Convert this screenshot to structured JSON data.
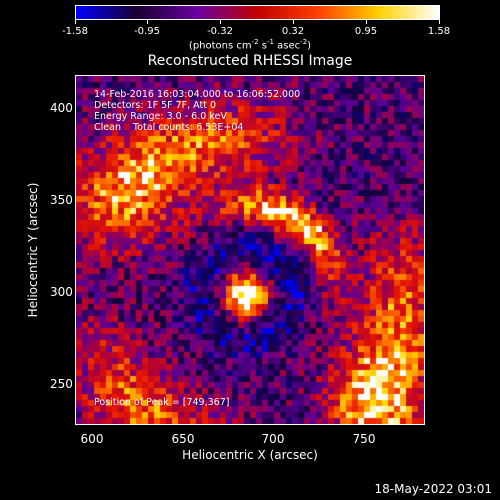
{
  "colorbar": {
    "ticks": [
      "-1.58",
      "-0.95",
      "-0.32",
      "0.32",
      "0.95",
      "1.58"
    ],
    "units_main": "(photons cm",
    "units_exp1": "-2",
    "units_s": " s",
    "units_exp2": "-1",
    "units_asec": " asec",
    "units_exp3": "-2",
    "units_end": ")",
    "colors": [
      "#0000ff",
      "#1a0030",
      "#6a00a0",
      "#c00000",
      "#ff4000",
      "#ffd000",
      "#ffffff"
    ]
  },
  "title": "Reconstructed RHESSI Image",
  "info": {
    "line1": "14-Feb-2016 16:03:04.000 to 16:06:52.000",
    "line2": "Detectors: 1F 5F 7F, Att 0",
    "line3": "Energy Range: 3.0 - 6.0 keV",
    "line4": "Clean    Total counts: 6.53E+04",
    "peak": "Position of Peak = [749,367]"
  },
  "axes": {
    "xlabel": "Heliocentric X (arcsec)",
    "ylabel": "Heliocentric Y (arcsec)",
    "xticks": [
      "600",
      "650",
      "700",
      "750"
    ],
    "yticks": [
      "400",
      "350",
      "300",
      "250"
    ]
  },
  "chart_data": {
    "type": "heatmap",
    "title": "Reconstructed RHESSI Image",
    "xlabel": "Heliocentric X (arcsec)",
    "ylabel": "Heliocentric Y (arcsec)",
    "xlim": [
      590,
      785
    ],
    "ylim": [
      227,
      422
    ],
    "zlim": [
      -1.58,
      1.58
    ],
    "peak": [
      749,
      367
    ]
  },
  "datestamp": "18-May-2022 03:01"
}
